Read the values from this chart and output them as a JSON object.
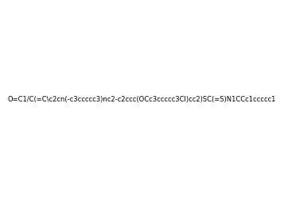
{
  "smiles": "O=C1/C(=C\\c2cn(-c3ccccc3)nc2-c2ccc(OCc3ccccc3Cl)cc2)SC(=S)N1CCc1ccccc1",
  "image_size": 300,
  "background_color": "#e8e8e8",
  "title": ""
}
